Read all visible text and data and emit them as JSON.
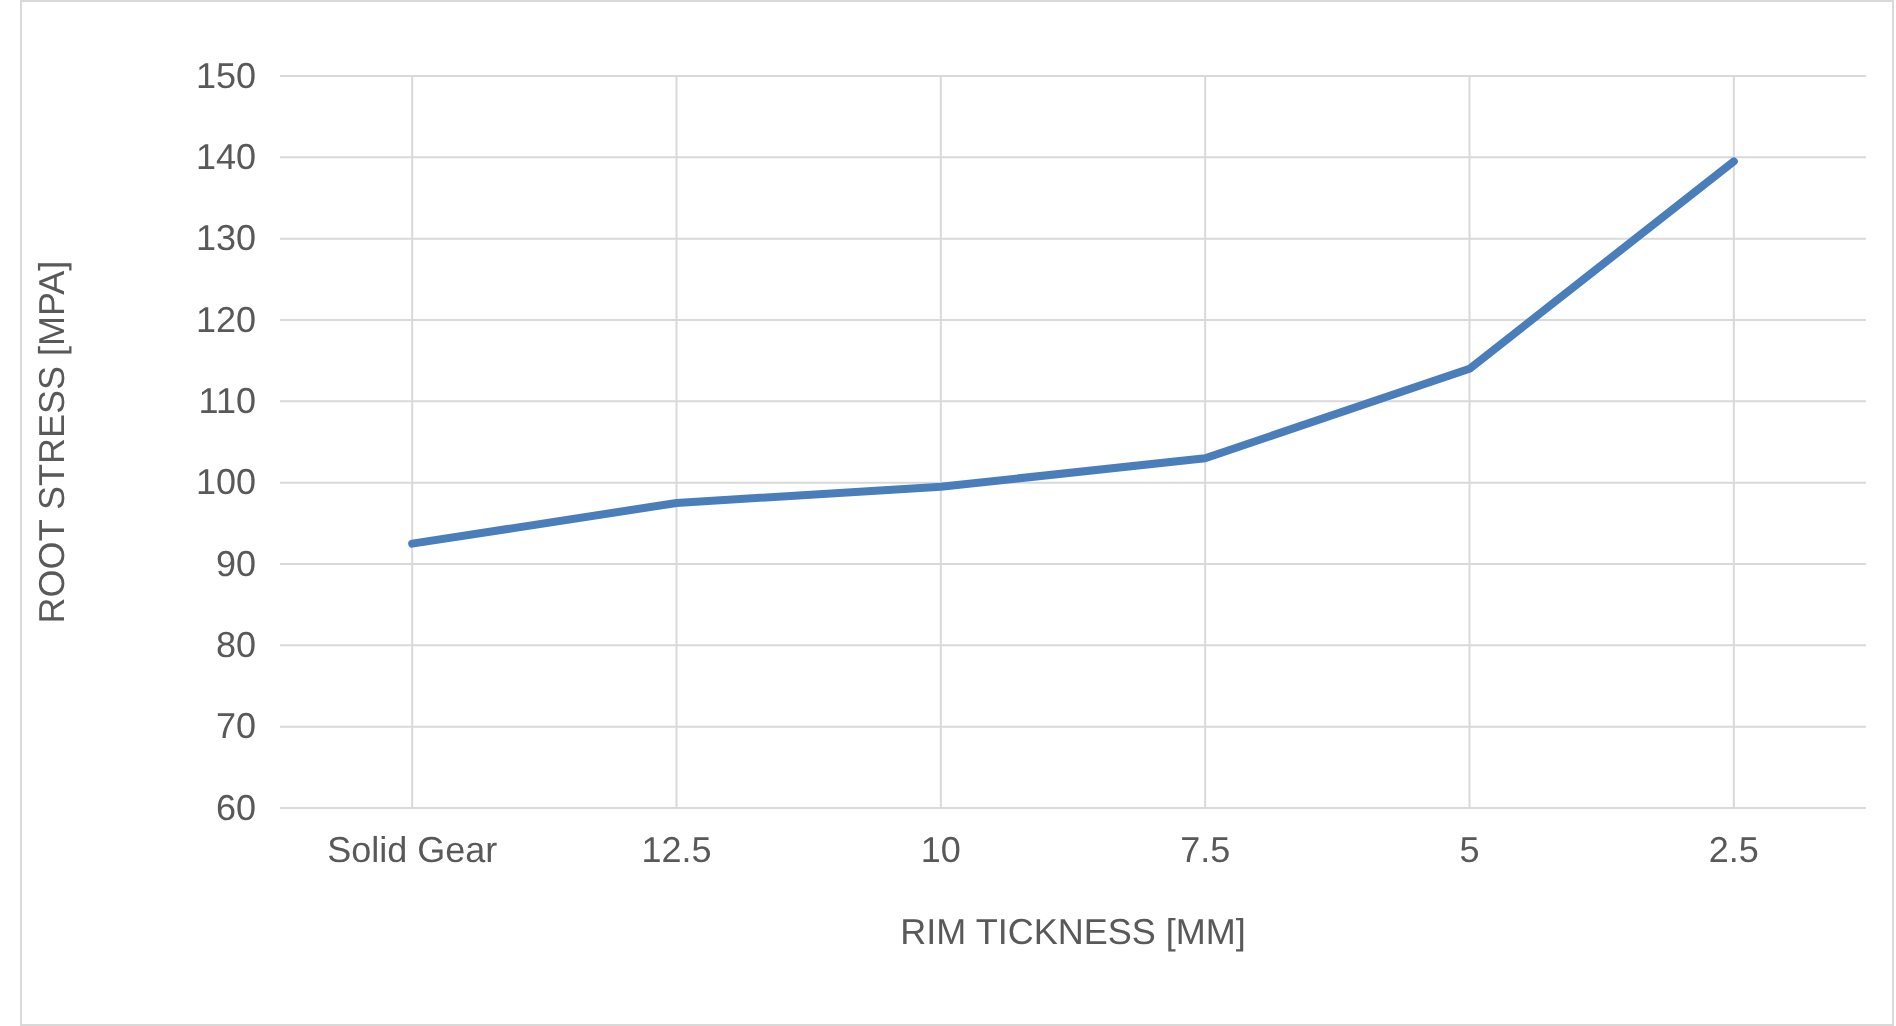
{
  "chart_data": {
    "type": "line",
    "xlabel": "RIM TICKNESS [MM]",
    "ylabel": "ROOT STRESS [MPA]",
    "categories": [
      "Solid Gear",
      "12.5",
      "10",
      "7.5",
      "5",
      "2.5"
    ],
    "series": [
      {
        "color": "#4a7ebb",
        "values": [
          92.5,
          97.5,
          99.5,
          103,
          114,
          139.5
        ]
      }
    ],
    "ylim": [
      60,
      150
    ],
    "yticks": [
      60,
      70,
      80,
      90,
      100,
      110,
      120,
      130,
      140,
      150
    ],
    "grid": true,
    "marker": "none",
    "line_style": "solid"
  }
}
